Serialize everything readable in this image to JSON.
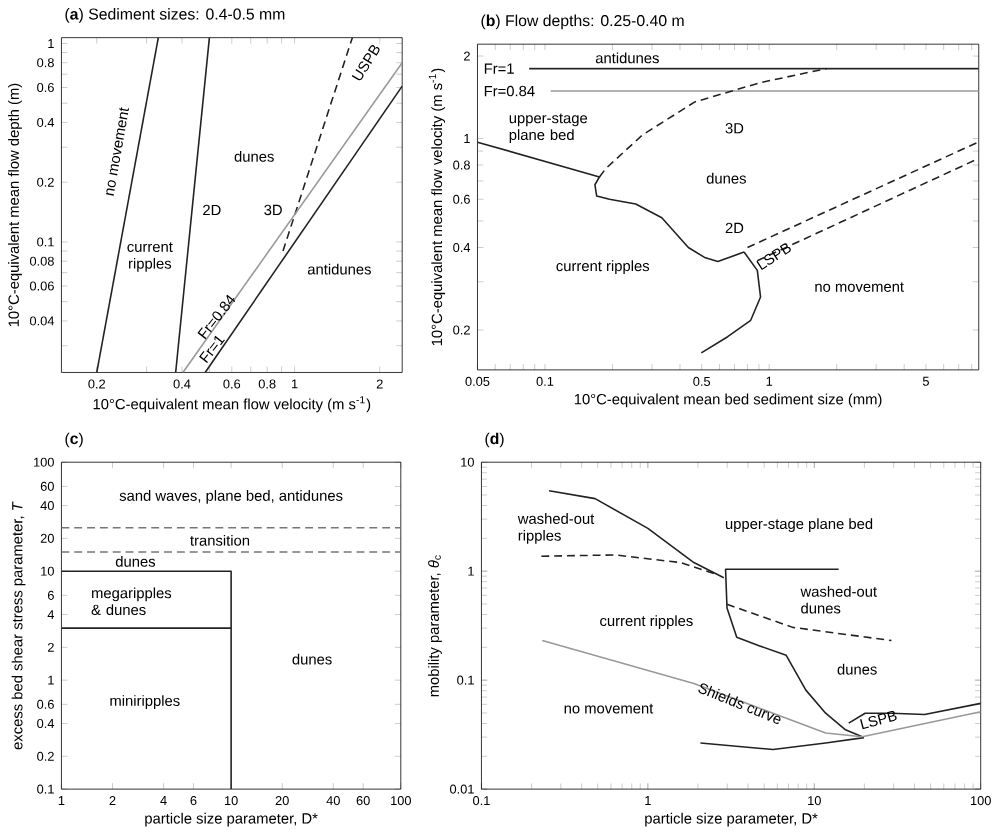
{
  "chart_data": [
    {
      "type": "line",
      "title": "(**a**) Sediment sizes: 0.4-0.5 mm",
      "xlabel": "10°C-equivalent mean flow velocity (m s$^{-1}$)",
      "ylabel": "10°C-equivalent mean flow depth (m)",
      "log": "xy",
      "marker": "none",
      "xlim": [
        0.15,
        2.4
      ],
      "ylim": [
        0.022,
        1.07
      ],
      "xticks": [
        0.2,
        {
          "value": 0.3,
          "label": null
        },
        0.4,
        {
          "value": 0.5,
          "label": null
        },
        0.6,
        {
          "value": 0.7,
          "label": null
        },
        0.8,
        {
          "value": 0.9,
          "label": null
        },
        1,
        2
      ],
      "yticks": [
        {
          "value": 0.03,
          "label": null
        },
        0.04,
        {
          "value": 0.05,
          "label": null
        },
        0.06,
        {
          "value": 0.07,
          "label": null
        },
        0.08,
        {
          "value": 0.09,
          "label": null
        },
        0.1,
        0.2,
        {
          "value": 0.3,
          "label": null
        },
        0.4,
        {
          "value": 0.5,
          "label": null
        },
        0.6,
        {
          "value": 0.7,
          "label": null
        },
        0.8,
        {
          "value": 0.9,
          "label": null
        },
        1
      ],
      "series": [
        {
          "color": "#222222",
          "x": [
            0.2,
            0.33
          ],
          "values": [
            0.022,
            1.07
          ]
        },
        {
          "color": "#222222",
          "x": [
            0.38,
            0.5
          ],
          "values": [
            0.022,
            1.07
          ]
        },
        {
          "color": "#222222",
          "line_style": "dashed",
          "x": [
            0.91,
            1.6
          ],
          "values": [
            0.09,
            1.07
          ]
        },
        {
          "color": "#999999",
          "x": [
            0.403,
            2.4
          ],
          "values": [
            0.022,
            0.8
          ]
        },
        {
          "color": "#222222",
          "x": [
            0.483,
            2.4
          ],
          "values": [
            0.022,
            0.61
          ]
        }
      ],
      "annotations": [
        "no movement",
        "current ripples",
        "2D",
        "3D",
        "dunes",
        "antidunes",
        "USPB",
        "Fr=0.84",
        "Fr=1"
      ]
    },
    {
      "type": "line",
      "title": "(**b**) Flow depths: 0.25-0.40 m",
      "xlabel": "10°C-equivalent mean bed sediment size (mm)",
      "ylabel": "10°C-equivalent mean flow velocity (m s$^{-1}$)",
      "log": "xy",
      "marker": "none",
      "xlim": [
        0.05,
        8.6
      ],
      "ylim": [
        0.143,
        2.21
      ],
      "xticks": [
        0.05,
        {
          "value": 0.06,
          "label": null
        },
        {
          "value": 0.07,
          "label": null
        },
        {
          "value": 0.08,
          "label": null
        },
        {
          "value": 0.09,
          "label": null
        },
        0.1,
        {
          "value": 0.2,
          "label": null
        },
        {
          "value": 0.3,
          "label": null
        },
        {
          "value": 0.4,
          "label": null
        },
        0.5,
        {
          "value": 0.6,
          "label": null
        },
        {
          "value": 0.7,
          "label": null
        },
        {
          "value": 0.8,
          "label": null
        },
        {
          "value": 0.9,
          "label": null
        },
        1,
        {
          "value": 2,
          "label": null
        },
        {
          "value": 3,
          "label": null
        },
        {
          "value": 4,
          "label": null
        },
        5,
        {
          "value": 6,
          "label": null
        },
        {
          "value": 7,
          "label": null
        },
        {
          "value": 8,
          "label": null
        }
      ],
      "yticks": [
        0.2,
        {
          "value": 0.3,
          "label": null
        },
        0.4,
        {
          "value": 0.5,
          "label": null
        },
        0.6,
        {
          "value": 0.7,
          "label": null
        },
        0.8,
        {
          "value": 0.9,
          "label": null
        },
        1,
        2
      ],
      "series": [
        {
          "color": "#222222",
          "x": [
            0.085,
            8.6
          ],
          "values": [
            1.8,
            1.8
          ]
        },
        {
          "color": "#999999",
          "x": [
            0.106,
            8.6
          ],
          "values": [
            1.49,
            1.49
          ]
        },
        {
          "color": "#222222",
          "x": [
            0.05,
            0.175,
            0.167,
            0.17,
            0.194,
            0.254,
            0.332,
            0.436,
            0.515,
            0.59,
            0.773
          ],
          "values": [
            0.97,
            0.724,
            0.678,
            0.617,
            0.6,
            0.577,
            0.514,
            0.4,
            0.368,
            0.356,
            0.385
          ]
        },
        {
          "color": "#222222",
          "line_style": "dashed",
          "x": [
            0.175,
            0.187,
            0.272,
            0.466,
            0.915,
            1.8
          ],
          "values": [
            0.724,
            0.778,
            1.03,
            1.36,
            1.6,
            1.8
          ]
        },
        {
          "color": "#222222",
          "line_style": "dashed",
          "x": [
            0.8,
            8.6
          ],
          "values": [
            0.4,
            0.972
          ]
        },
        {
          "color": "#222222",
          "line_style": "dashed",
          "x": [
            0.885,
            8.6
          ],
          "values": [
            0.358,
            0.846
          ]
        },
        {
          "color": "#222222",
          "x": [
            0.773,
            0.885,
            0.915,
            0.827,
            0.653,
            0.498
          ],
          "values": [
            0.385,
            0.33,
            0.264,
            0.217,
            0.189,
            0.165
          ]
        }
      ],
      "annotations": [
        "antidunes",
        "Fr=1",
        "Fr=0.84",
        "upper-stage plane bed",
        "3D",
        "dunes",
        "2D",
        "current ripples",
        "no movement",
        "LSPB"
      ]
    },
    {
      "type": "line",
      "title": "(**c**)",
      "xlabel": "particle size parameter, D*",
      "ylabel": "excess bed shear stress parameter, *T*",
      "log": "xy",
      "marker": "none",
      "xlim": [
        1,
        100
      ],
      "ylim": [
        0.1,
        100
      ],
      "xticks": [
        1,
        2,
        4,
        6,
        10,
        20,
        40,
        60,
        100
      ],
      "yticks": [
        0.1,
        0.2,
        0.4,
        0.6,
        1,
        2,
        4,
        6,
        10,
        20,
        40,
        60,
        100
      ],
      "series": [
        {
          "color": "#777777",
          "line_style": "dashed",
          "x": [
            1,
            100
          ],
          "values": [
            25,
            25
          ]
        },
        {
          "color": "#777777",
          "line_style": "dashed",
          "x": [
            1,
            100
          ],
          "values": [
            15,
            15
          ]
        },
        {
          "color": "#222222",
          "x": [
            1,
            10,
            10
          ],
          "values": [
            10,
            10,
            0.1
          ]
        },
        {
          "color": "#222222",
          "x": [
            1,
            10
          ],
          "values": [
            3,
            3
          ]
        }
      ],
      "annotations": [
        "sand waves, plane bed, antidunes",
        "transition",
        "dunes",
        "megaripples & dunes",
        "dunes",
        "miniripples"
      ]
    },
    {
      "type": "line",
      "title": "(**d**)",
      "xlabel": "particle size parameter, D*",
      "ylabel": "mobility parameter, *θ*$_{c}$",
      "log": "xy",
      "marker": "none",
      "xlim": [
        0.1,
        100
      ],
      "ylim": [
        0.01,
        10
      ],
      "xticks": [
        0.1,
        1,
        10,
        100
      ],
      "yticks": [
        0.01,
        0.1,
        1,
        10
      ],
      "series": [
        {
          "color": "#222222",
          "x": [
            0.255,
            0.482,
            1.0,
            1.89,
            2.86
          ],
          "values": [
            5.47,
            4.63,
            2.47,
            1.2,
            0.87
          ]
        },
        {
          "color": "#222222",
          "x": [
            14.0,
            2.93,
            2.99,
            3.42,
            4.7,
            6.78,
            8.9,
            11.7,
            15.4,
            19.9
          ],
          "values": [
            1.04,
            1.04,
            0.46,
            0.247,
            0.206,
            0.169,
            0.081,
            0.0497,
            0.035,
            0.0297
          ]
        },
        {
          "color": "#222222",
          "x": [
            2.07,
            5.65,
            11.7,
            19.9
          ],
          "values": [
            0.0265,
            0.0231,
            0.0265,
            0.0297
          ]
        },
        {
          "color": "#222222",
          "x": [
            16.1,
            20.2,
            29.1,
            46,
            100
          ],
          "values": [
            0.0403,
            0.0497,
            0.0497,
            0.0483,
            0.0612
          ]
        },
        {
          "color": "#999999",
          "x": [
            0.232,
            1.89,
            11.7,
            19.4,
            100
          ],
          "values": [
            0.231,
            0.093,
            0.0327,
            0.0302,
            0.0512
          ]
        },
        {
          "color": "#222222",
          "line_style": "dashed",
          "x": [
            0.229,
            0.634,
            1.57,
            2.6
          ],
          "values": [
            1.37,
            1.41,
            1.2,
            0.93
          ]
        },
        {
          "color": "#222222",
          "line_style": "dashed",
          "x": [
            2.99,
            7.42,
            29.1
          ],
          "values": [
            0.497,
            0.305,
            0.231
          ]
        }
      ],
      "annotations": [
        "washed-out ripples",
        "upper-stage plane bed",
        "washed-out dunes",
        "current ripples",
        "dunes",
        "no movement",
        "Shields curve",
        "LSPB"
      ]
    }
  ]
}
